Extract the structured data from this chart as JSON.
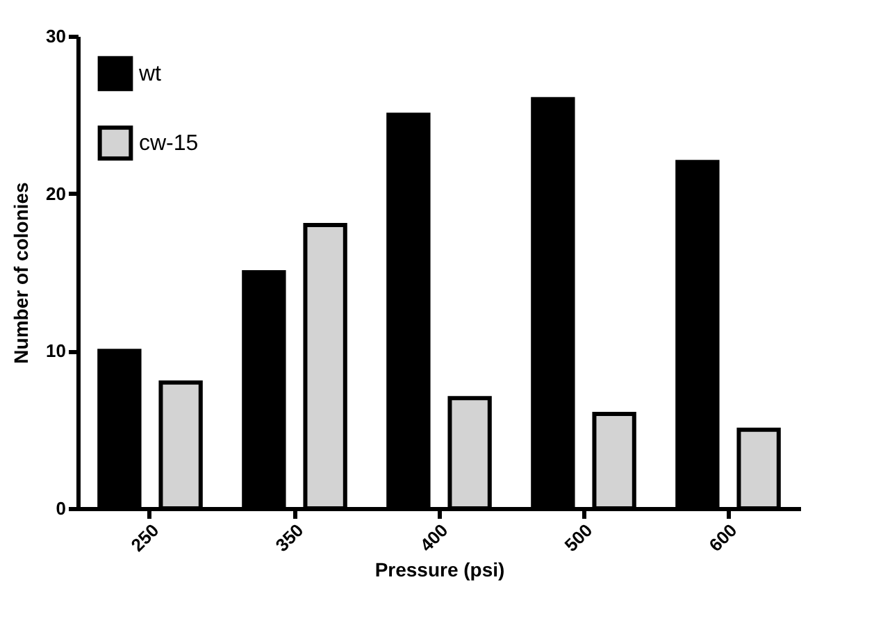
{
  "chart_data": {
    "type": "bar",
    "xlabel": "Pressure (psi)",
    "ylabel": "Number of colonies",
    "categories": [
      "250",
      "350",
      "400",
      "500",
      "600"
    ],
    "series": [
      {
        "name": "wt",
        "color": "#000000",
        "values": [
          10,
          15,
          25,
          26,
          22
        ]
      },
      {
        "name": "cw-15",
        "color": "#d3d3d3",
        "values": [
          8,
          18,
          7,
          6,
          5
        ]
      }
    ],
    "ylim": [
      0,
      30
    ],
    "yticks": [
      0,
      10,
      20,
      30
    ],
    "grid": false,
    "legend": "top left"
  }
}
